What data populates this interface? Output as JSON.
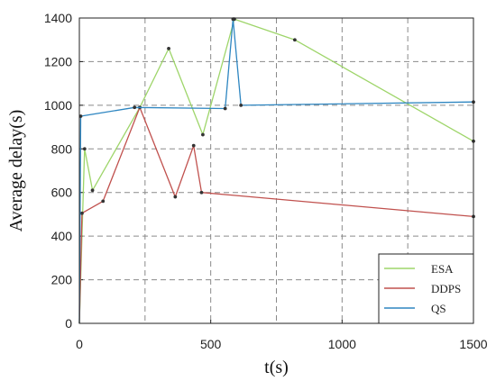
{
  "chart_data": {
    "type": "line",
    "xlabel": "t(s)",
    "ylabel": "Average delay(s)",
    "xlim": [
      0,
      1500
    ],
    "ylim": [
      0,
      1400
    ],
    "xticks": [
      0,
      500,
      1000,
      1500
    ],
    "yticks": [
      0,
      200,
      400,
      600,
      800,
      1000,
      1200,
      1400
    ],
    "grid": true,
    "grid_style": "dashed",
    "legend_position": "bottom-right",
    "series": [
      {
        "name": "ESA",
        "color": "#9ed56a",
        "points": [
          [
            0,
            0
          ],
          [
            20,
            800
          ],
          [
            50,
            610
          ],
          [
            230,
            990
          ],
          [
            340,
            1260
          ],
          [
            470,
            865
          ],
          [
            590,
            1395
          ],
          [
            820,
            1300
          ],
          [
            1500,
            835
          ]
        ]
      },
      {
        "name": "DDPS",
        "color": "#c0504d",
        "points": [
          [
            0,
            0
          ],
          [
            10,
            505
          ],
          [
            90,
            560
          ],
          [
            230,
            990
          ],
          [
            365,
            580
          ],
          [
            435,
            815
          ],
          [
            465,
            600
          ],
          [
            1500,
            490
          ]
        ]
      },
      {
        "name": "QS",
        "color": "#2e86c1",
        "points": [
          [
            0,
            0
          ],
          [
            5,
            950
          ],
          [
            210,
            990
          ],
          [
            555,
            985
          ],
          [
            585,
            1395
          ],
          [
            615,
            1000
          ],
          [
            1500,
            1015
          ]
        ]
      }
    ]
  }
}
